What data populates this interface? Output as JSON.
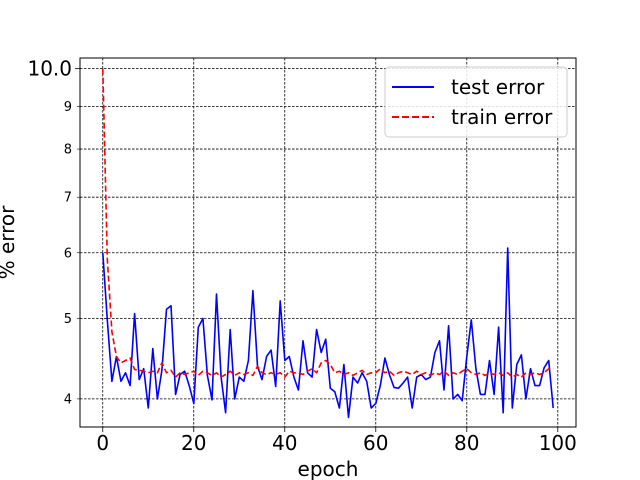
{
  "chart_data": {
    "type": "line",
    "xlabel": "epoch",
    "ylabel": "% error",
    "xlim": [
      -5,
      104
    ],
    "ylim": [
      3.7,
      10.3
    ],
    "yscale": "log",
    "grid": true,
    "legend_position": "top-right",
    "x_ticks": [
      0,
      20,
      40,
      60,
      80,
      100
    ],
    "y_ticks_major": [
      {
        "value": 10,
        "label": "10.0"
      }
    ],
    "y_ticks_minor": [
      {
        "value": 4,
        "label": "4"
      },
      {
        "value": 5,
        "label": "5"
      },
      {
        "value": 6,
        "label": "6"
      },
      {
        "value": 7,
        "label": "7"
      },
      {
        "value": 8,
        "label": "8"
      },
      {
        "value": 9,
        "label": "9"
      }
    ],
    "x": [
      0,
      1,
      2,
      3,
      4,
      5,
      6,
      7,
      8,
      9,
      10,
      11,
      12,
      13,
      14,
      15,
      16,
      17,
      18,
      19,
      20,
      21,
      22,
      23,
      24,
      25,
      26,
      27,
      28,
      29,
      30,
      31,
      32,
      33,
      34,
      35,
      36,
      37,
      38,
      39,
      40,
      41,
      42,
      43,
      44,
      45,
      46,
      47,
      48,
      49,
      50,
      51,
      52,
      53,
      54,
      55,
      56,
      57,
      58,
      59,
      60,
      61,
      62,
      63,
      64,
      65,
      66,
      67,
      68,
      69,
      70,
      71,
      72,
      73,
      74,
      75,
      76,
      77,
      78,
      79,
      80,
      81,
      82,
      83,
      84,
      85,
      86,
      87,
      88,
      89,
      90,
      91,
      92,
      93,
      94,
      95,
      96,
      97,
      98,
      99
    ],
    "series": [
      {
        "name": "test error",
        "color": "#0000ff",
        "style": "solid",
        "values": [
          6.0,
          4.98,
          4.2,
          4.5,
          4.2,
          4.3,
          4.15,
          5.07,
          4.22,
          4.35,
          3.9,
          4.6,
          4.0,
          4.33,
          5.13,
          5.18,
          4.05,
          4.28,
          4.32,
          4.15,
          3.95,
          4.88,
          5.0,
          4.27,
          3.99,
          5.35,
          4.25,
          3.85,
          4.85,
          4.0,
          4.25,
          4.2,
          4.45,
          5.4,
          4.38,
          4.22,
          4.5,
          4.58,
          4.14,
          5.25,
          4.45,
          4.5,
          4.25,
          4.1,
          4.7,
          4.3,
          4.25,
          4.85,
          4.55,
          4.72,
          4.12,
          4.08,
          3.9,
          4.4,
          3.8,
          4.25,
          4.18,
          4.3,
          4.2,
          3.9,
          3.95,
          4.15,
          4.48,
          4.28,
          4.13,
          4.12,
          4.18,
          4.25,
          3.9,
          4.25,
          4.28,
          4.22,
          4.25,
          4.55,
          4.7,
          4.1,
          4.9,
          4.0,
          4.05,
          3.98,
          4.5,
          4.98,
          4.35,
          4.05,
          4.05,
          4.45,
          4.05,
          4.88,
          3.85,
          6.08,
          3.9,
          4.4,
          4.52,
          4.0,
          4.35,
          4.15,
          4.15,
          4.36,
          4.45,
          3.9
        ]
      },
      {
        "name": "train error",
        "color": "#ff0000",
        "style": "dashed",
        "values": [
          10.0,
          5.9,
          4.82,
          4.5,
          4.42,
          4.45,
          4.48,
          4.34,
          4.33,
          4.32,
          4.3,
          4.32,
          4.3,
          4.42,
          4.3,
          4.33,
          4.25,
          4.3,
          4.28,
          4.3,
          4.32,
          4.27,
          4.32,
          4.3,
          4.27,
          4.3,
          4.25,
          4.28,
          4.32,
          4.27,
          4.3,
          4.28,
          4.3,
          4.27,
          4.38,
          4.3,
          4.28,
          4.3,
          4.28,
          4.3,
          4.25,
          4.32,
          4.3,
          4.3,
          4.28,
          4.32,
          4.35,
          4.3,
          4.42,
          4.45,
          4.4,
          4.3,
          4.32,
          4.28,
          4.3,
          4.27,
          4.3,
          4.33,
          4.28,
          4.3,
          4.3,
          4.35,
          4.3,
          4.32,
          4.27,
          4.3,
          4.32,
          4.3,
          4.28,
          4.32,
          4.28,
          4.3,
          4.27,
          4.3,
          4.28,
          4.32,
          4.27,
          4.3,
          4.28,
          4.32,
          4.35,
          4.3,
          4.28,
          4.3,
          4.27,
          4.3,
          4.28,
          4.3,
          4.27,
          4.3,
          4.25,
          4.28,
          4.25,
          4.3,
          4.28,
          4.3,
          4.28,
          4.3,
          4.35,
          4.35
        ]
      }
    ]
  }
}
